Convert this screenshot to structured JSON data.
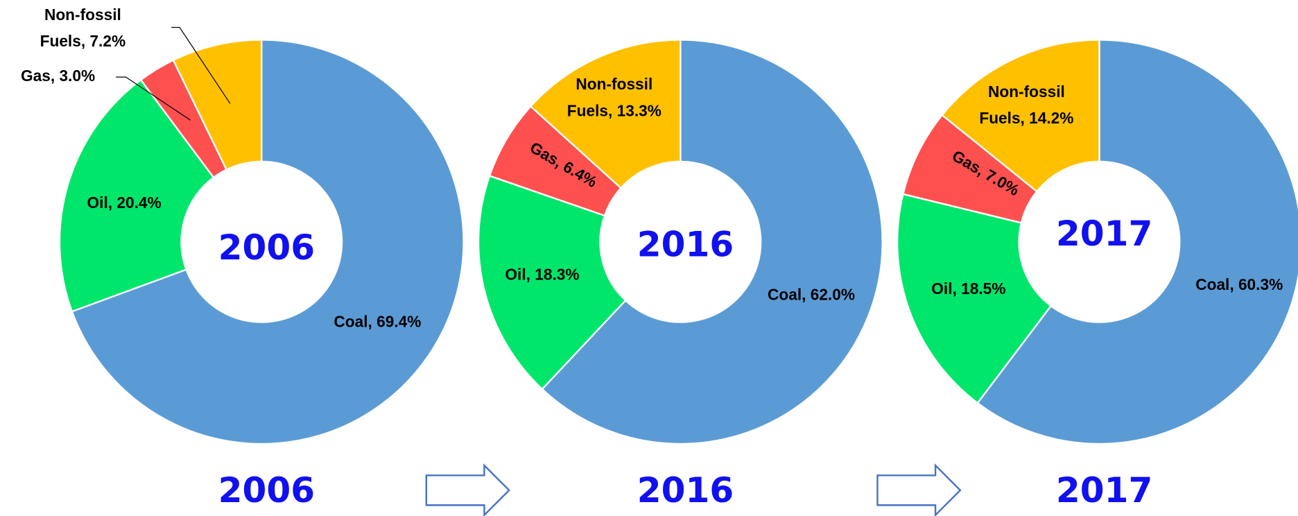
{
  "chart_data": [
    {
      "type": "pie",
      "center_label": "2006",
      "title": "2006",
      "categories": [
        "Coal",
        "Oil",
        "Gas",
        "Non-fossil Fuels"
      ],
      "values": [
        69.4,
        20.4,
        3.0,
        7.2
      ],
      "value_labels": [
        "Coal, 69.4%",
        "Oil, 20.4%",
        "Gas, 3.0%",
        "Non-fossil Fuels, 7.2%"
      ],
      "colors": [
        "#5b9bd5",
        "#00e66b",
        "#ff5050",
        "#ffc000"
      ]
    },
    {
      "type": "pie",
      "center_label": "2016",
      "title": "2016",
      "categories": [
        "Coal",
        "Oil",
        "Gas",
        "Non-fossil Fuels"
      ],
      "values": [
        62.0,
        18.3,
        6.4,
        13.3
      ],
      "value_labels": [
        "Coal, 62.0%",
        "Oil, 18.3%",
        "Gas, 6.4%",
        "Non-fossil Fuels, 13.3%"
      ],
      "colors": [
        "#5b9bd5",
        "#00e66b",
        "#ff5050",
        "#ffc000"
      ]
    },
    {
      "type": "pie",
      "center_label": "2017",
      "title": "2017",
      "categories": [
        "Coal",
        "Oil",
        "Gas",
        "Non-fossil Fuels"
      ],
      "values": [
        60.3,
        18.5,
        7.0,
        14.2
      ],
      "value_labels": [
        "Coal, 60.3%",
        "Oil, 18.5%",
        "Gas, 7.0%",
        "Non-fossil Fuels, 14.2%"
      ],
      "colors": [
        "#5b9bd5",
        "#00e66b",
        "#ff5050",
        "#ffc000"
      ]
    }
  ]
}
